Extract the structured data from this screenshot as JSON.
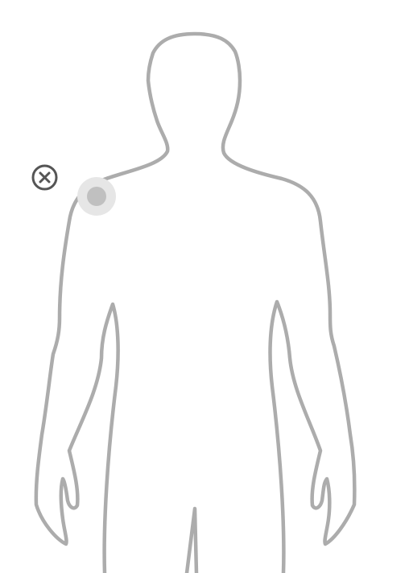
{
  "figure": {
    "view": "front",
    "outline_color": "#acacac"
  },
  "marker": {
    "location": "left-shoulder",
    "halo_color": "#e6e6e6",
    "dot_color": "#c0c0c0"
  },
  "close_button": {
    "icon": "close-circle-icon",
    "color": "#555555"
  }
}
